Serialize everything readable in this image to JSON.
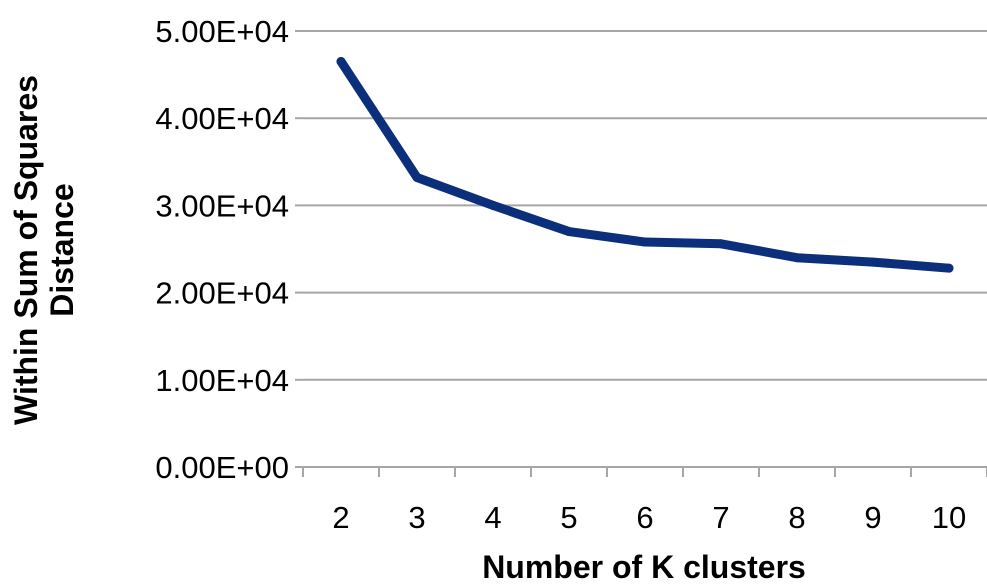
{
  "chart_data": {
    "type": "line",
    "title": "",
    "xlabel": "Number of K clusters",
    "ylabel_lines": [
      "Within Sum of Squares",
      "Distance"
    ],
    "x": [
      2,
      3,
      4,
      5,
      6,
      7,
      8,
      9,
      10
    ],
    "x_tick_labels": [
      "2",
      "3",
      "4",
      "5",
      "6",
      "7",
      "8",
      "9",
      "10"
    ],
    "series": [
      {
        "values": [
          46500,
          33200,
          30000,
          27000,
          25800,
          25600,
          24000,
          23500,
          22800
        ],
        "color": "#0b2f7a"
      }
    ],
    "ylim": [
      0,
      50000
    ],
    "y_ticks": [
      0,
      10000,
      20000,
      30000,
      40000,
      50000
    ],
    "y_tick_labels": [
      "0.00E+00",
      "1.00E+04",
      "2.00E+04",
      "3.00E+04",
      "4.00E+04",
      "5.00E+04"
    ],
    "grid": true,
    "grid_color": "#a6a6a6",
    "legend": "none"
  }
}
